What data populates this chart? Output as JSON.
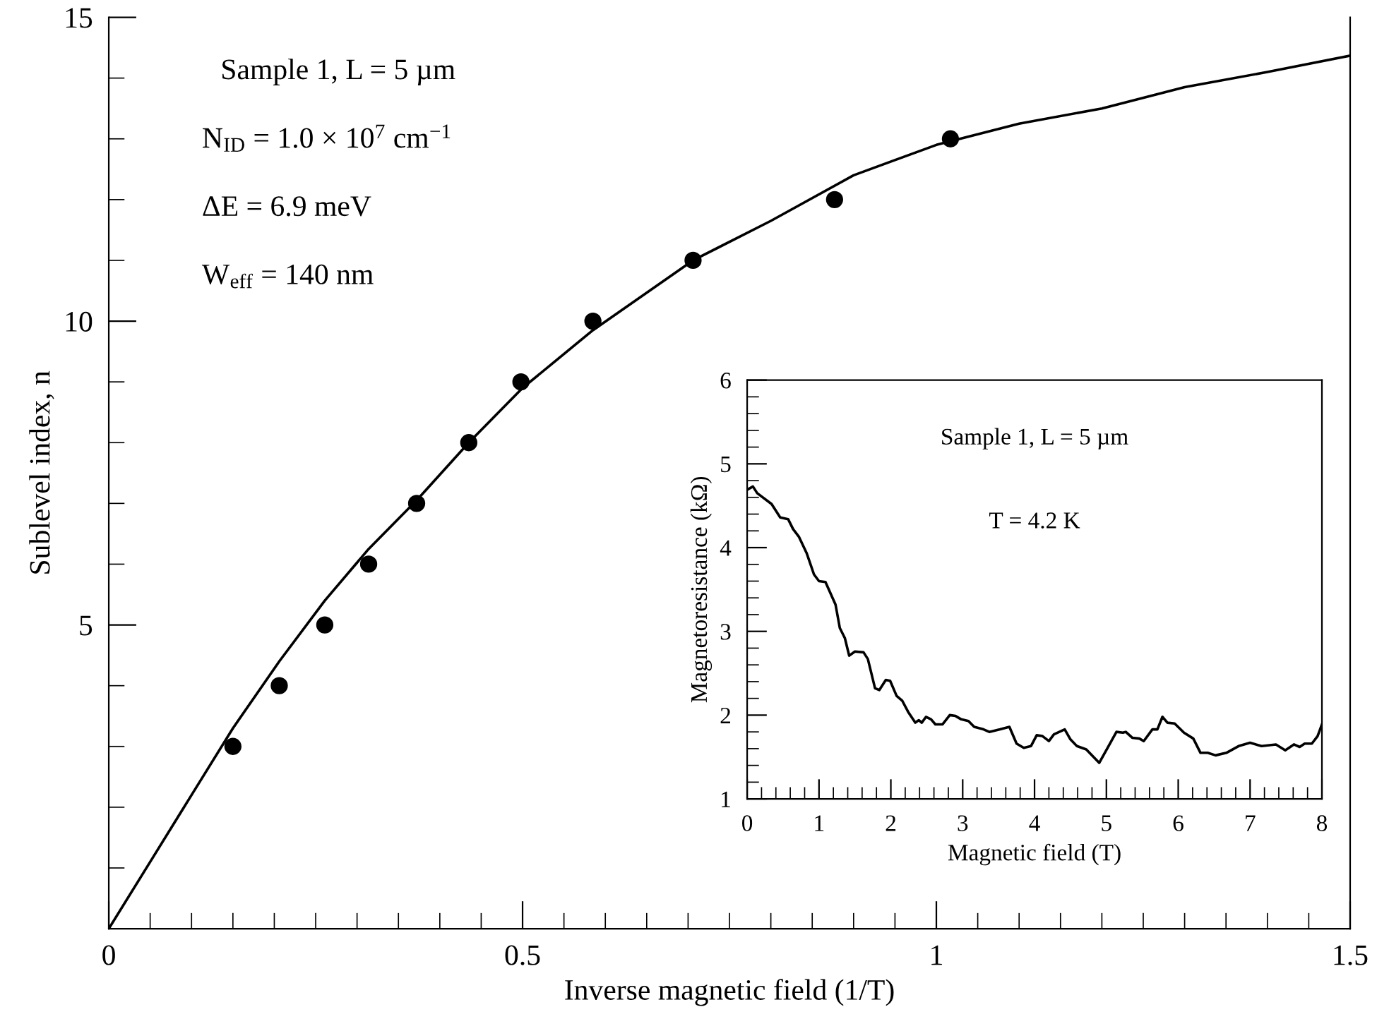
{
  "chart_data": [
    {
      "type": "scatter",
      "xlabel": "Inverse magnetic field (1/T)",
      "ylabel": "Sublevel index, n",
      "xlim": [
        0,
        1.5
      ],
      "ylim": [
        0,
        15
      ],
      "xticks": [
        0,
        {
          "value": 0.05,
          "label": null
        },
        {
          "value": 0.1,
          "label": null
        },
        {
          "value": 0.15,
          "label": null
        },
        {
          "value": 0.2,
          "label": null
        },
        {
          "value": 0.25,
          "label": null
        },
        {
          "value": 0.3,
          "label": null
        },
        {
          "value": 0.35,
          "label": null
        },
        {
          "value": 0.4,
          "label": null
        },
        {
          "value": 0.45,
          "label": null
        },
        0.5,
        {
          "value": 0.55,
          "label": null
        },
        {
          "value": 0.6,
          "label": null
        },
        {
          "value": 0.65,
          "label": null
        },
        {
          "value": 0.7,
          "label": null
        },
        {
          "value": 0.75,
          "label": null
        },
        {
          "value": 0.8,
          "label": null
        },
        {
          "value": 0.85,
          "label": null
        },
        {
          "value": 0.9,
          "label": null
        },
        {
          "value": 0.95,
          "label": null
        },
        1,
        {
          "value": 1.05,
          "label": null
        },
        {
          "value": 1.1,
          "label": null
        },
        {
          "value": 1.15,
          "label": null
        },
        {
          "value": 1.2,
          "label": null
        },
        {
          "value": 1.25,
          "label": null
        },
        {
          "value": 1.3,
          "label": null
        },
        {
          "value": 1.35,
          "label": null
        },
        {
          "value": 1.4,
          "label": null
        },
        {
          "value": 1.45,
          "label": null
        },
        1.5
      ],
      "yticks": [
        {
          "value": 0,
          "label": null
        },
        {
          "value": 1,
          "label": null
        },
        {
          "value": 2,
          "label": null
        },
        {
          "value": 3,
          "label": null
        },
        {
          "value": 4,
          "label": null
        },
        5,
        {
          "value": 6,
          "label": null
        },
        {
          "value": 7,
          "label": null
        },
        {
          "value": 8,
          "label": null
        },
        {
          "value": 9,
          "label": null
        },
        10,
        {
          "value": 11,
          "label": null
        },
        {
          "value": 12,
          "label": null
        },
        {
          "value": 13,
          "label": null
        },
        {
          "value": 14,
          "label": null
        },
        15
      ],
      "grid": false,
      "legend": false,
      "annotations": [
        "Sample 1, L = 5 µm",
        "N$_{ID}$ = 1.0 × 10$^{7}$ cm$^{−1}$",
        "ΔE = 6.9 meV",
        "W$_{eff}$ = 140 nm"
      ],
      "series": [
        {
          "marker": "circle",
          "color": "#000000",
          "x": [
            0.15,
            0.206,
            0.261,
            0.314,
            0.372,
            0.435,
            0.498,
            0.585,
            0.706,
            0.877,
            1.017
          ],
          "values": [
            3,
            4,
            5,
            6,
            7,
            8,
            9,
            10,
            11,
            12,
            13
          ]
        },
        {
          "type": "line",
          "line_style": "solid",
          "color": "#000000",
          "x": [
            0,
            0.05,
            0.1,
            0.15,
            0.206,
            0.261,
            0.314,
            0.372,
            0.435,
            0.5,
            0.585,
            0.706,
            0.8,
            0.9,
            1.0,
            1.1,
            1.2,
            1.3,
            1.4,
            1.5
          ],
          "values": [
            0,
            1.1,
            2.2,
            3.3,
            4.4,
            5.4,
            6.25,
            7.05,
            8.0,
            8.9,
            9.85,
            11.0,
            11.65,
            12.4,
            12.9,
            13.25,
            13.5,
            13.85,
            14.1,
            14.37
          ]
        }
      ]
    },
    {
      "type": "line",
      "xlabel": "Magnetic field (T)",
      "ylabel": "Magnetoresistance (kΩ)",
      "xlim": [
        0,
        8
      ],
      "ylim": [
        1,
        6
      ],
      "xticks": [
        0,
        {
          "value": 0.2,
          "label": null
        },
        {
          "value": 0.4,
          "label": null
        },
        {
          "value": 0.6,
          "label": null
        },
        {
          "value": 0.8,
          "label": null
        },
        1,
        {
          "value": 1.2,
          "label": null
        },
        {
          "value": 1.4,
          "label": null
        },
        {
          "value": 1.6,
          "label": null
        },
        {
          "value": 1.8,
          "label": null
        },
        2,
        {
          "value": 2.2,
          "label": null
        },
        {
          "value": 2.4,
          "label": null
        },
        {
          "value": 2.6,
          "label": null
        },
        {
          "value": 2.8,
          "label": null
        },
        3,
        {
          "value": 3.2,
          "label": null
        },
        {
          "value": 3.4,
          "label": null
        },
        {
          "value": 3.6,
          "label": null
        },
        {
          "value": 3.8,
          "label": null
        },
        4,
        {
          "value": 4.2,
          "label": null
        },
        {
          "value": 4.4,
          "label": null
        },
        {
          "value": 4.6,
          "label": null
        },
        {
          "value": 4.8,
          "label": null
        },
        5,
        {
          "value": 5.2,
          "label": null
        },
        {
          "value": 5.4,
          "label": null
        },
        {
          "value": 5.6,
          "label": null
        },
        {
          "value": 5.8,
          "label": null
        },
        6,
        {
          "value": 6.2,
          "label": null
        },
        {
          "value": 6.4,
          "label": null
        },
        {
          "value": 6.6,
          "label": null
        },
        {
          "value": 6.8,
          "label": null
        },
        7,
        {
          "value": 7.2,
          "label": null
        },
        {
          "value": 7.4,
          "label": null
        },
        {
          "value": 7.6,
          "label": null
        },
        {
          "value": 7.8,
          "label": null
        },
        8
      ],
      "yticks": [
        1,
        {
          "value": 1.2,
          "label": null
        },
        {
          "value": 1.4,
          "label": null
        },
        {
          "value": 1.6,
          "label": null
        },
        {
          "value": 1.8,
          "label": null
        },
        2,
        {
          "value": 2.2,
          "label": null
        },
        {
          "value": 2.4,
          "label": null
        },
        {
          "value": 2.6,
          "label": null
        },
        {
          "value": 2.8,
          "label": null
        },
        3,
        {
          "value": 3.2,
          "label": null
        },
        {
          "value": 3.4,
          "label": null
        },
        {
          "value": 3.6,
          "label": null
        },
        {
          "value": 3.8,
          "label": null
        },
        4,
        {
          "value": 4.2,
          "label": null
        },
        {
          "value": 4.4,
          "label": null
        },
        {
          "value": 4.6,
          "label": null
        },
        {
          "value": 4.8,
          "label": null
        },
        5,
        {
          "value": 5.2,
          "label": null
        },
        {
          "value": 5.4,
          "label": null
        },
        {
          "value": 5.6,
          "label": null
        },
        {
          "value": 5.8,
          "label": null
        },
        6
      ],
      "grid": false,
      "legend": false,
      "annotations": [
        "Sample 1, L = 5 µm",
        "T = 4.2 K"
      ],
      "series": [
        {
          "line_style": "solid",
          "color": "#000000",
          "x": [
            0,
            0.08,
            0.14,
            0.34,
            0.46,
            0.57,
            0.64,
            0.72,
            0.83,
            0.93,
            1.0,
            1.09,
            1.23,
            1.29,
            1.36,
            1.42,
            1.5,
            1.62,
            1.68,
            1.78,
            1.84,
            1.93,
            1.99,
            2.08,
            2.16,
            2.24,
            2.34,
            2.39,
            2.43,
            2.49,
            2.56,
            2.62,
            2.72,
            2.82,
            2.9,
            2.98,
            3.08,
            3.16,
            3.29,
            3.37,
            3.52,
            3.65,
            3.75,
            3.85,
            3.95,
            4.03,
            4.11,
            4.2,
            4.27,
            4.42,
            4.5,
            4.59,
            4.72,
            4.9,
            5.03,
            5.14,
            5.23,
            5.27,
            5.36,
            5.46,
            5.52,
            5.64,
            5.71,
            5.78,
            5.85,
            5.95,
            6.08,
            6.21,
            6.31,
            6.41,
            6.52,
            6.67,
            6.84,
            7.0,
            7.16,
            7.36,
            7.49,
            7.61,
            7.69,
            7.76,
            7.86,
            7.94,
            8.0
          ],
          "values": [
            4.69,
            4.73,
            4.65,
            4.52,
            4.36,
            4.34,
            4.22,
            4.13,
            3.93,
            3.68,
            3.6,
            3.59,
            3.32,
            3.04,
            2.92,
            2.71,
            2.76,
            2.75,
            2.67,
            2.32,
            2.3,
            2.42,
            2.41,
            2.23,
            2.17,
            2.04,
            1.91,
            1.94,
            1.91,
            1.98,
            1.95,
            1.89,
            1.89,
            2.0,
            1.99,
            1.95,
            1.93,
            1.86,
            1.83,
            1.8,
            1.83,
            1.86,
            1.66,
            1.61,
            1.63,
            1.76,
            1.75,
            1.69,
            1.77,
            1.83,
            1.71,
            1.63,
            1.59,
            1.43,
            1.63,
            1.8,
            1.79,
            1.8,
            1.73,
            1.72,
            1.69,
            1.83,
            1.83,
            1.98,
            1.91,
            1.9,
            1.79,
            1.72,
            1.55,
            1.55,
            1.52,
            1.55,
            1.63,
            1.67,
            1.63,
            1.65,
            1.58,
            1.65,
            1.62,
            1.66,
            1.66,
            1.75,
            1.89
          ]
        }
      ]
    }
  ]
}
